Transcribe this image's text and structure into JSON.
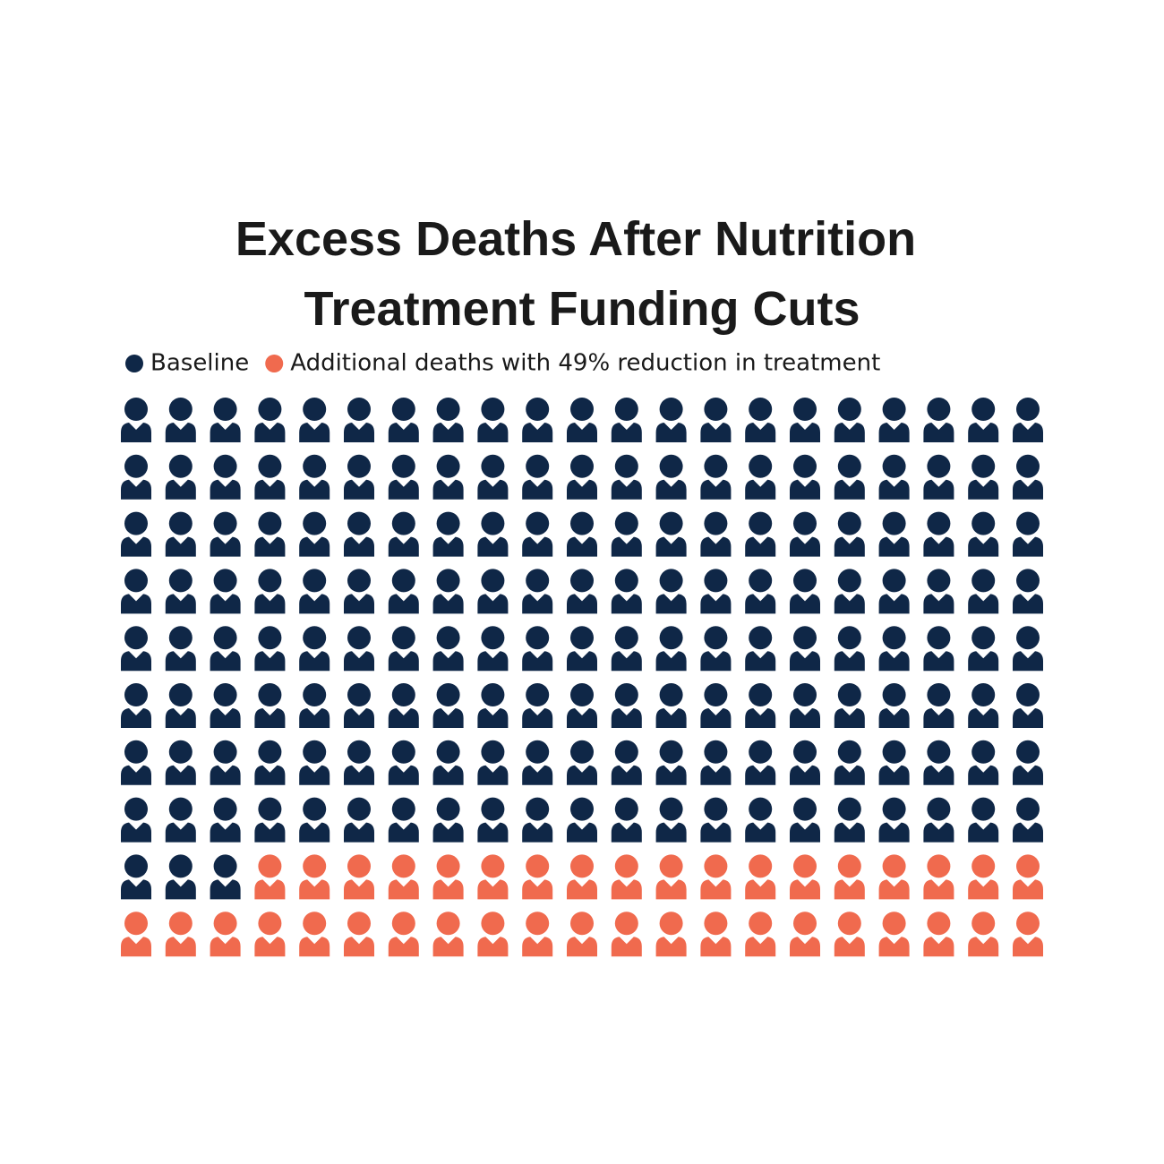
{
  "chart_data": {
    "type": "waffle",
    "title": [
      "Excess Deaths After Nutrition",
      "Treatment Funding Cuts"
    ],
    "series": [
      {
        "name": "Baseline",
        "color": "#0f2747",
        "value": 171
      },
      {
        "name": "Additional deaths with 49% reduction in treatment",
        "color": "#f06a4e",
        "value": 39
      }
    ]
  }
}
